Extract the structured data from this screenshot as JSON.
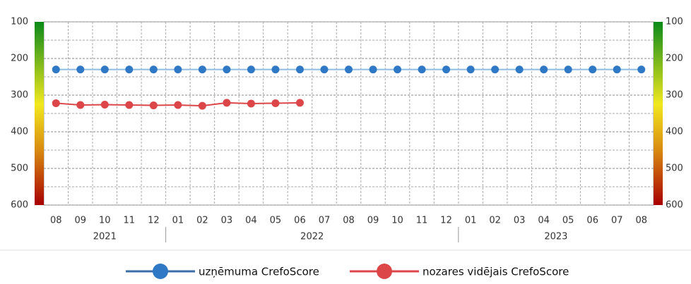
{
  "chart_data": {
    "type": "line",
    "categories": [
      "08",
      "09",
      "10",
      "11",
      "12",
      "01",
      "02",
      "03",
      "04",
      "05",
      "06",
      "07",
      "08",
      "09",
      "10",
      "11",
      "12",
      "01",
      "02",
      "03",
      "04",
      "05",
      "06",
      "07",
      "08"
    ],
    "years": [
      "2021",
      "2022",
      "2023"
    ],
    "series": [
      {
        "name": "uzņēmuma CrefoScore",
        "color": "#2f78c5",
        "line_color": "#8fbbe3",
        "values": [
          230,
          230,
          230,
          230,
          230,
          230,
          230,
          230,
          230,
          230,
          230,
          230,
          230,
          230,
          230,
          230,
          230,
          230,
          230,
          230,
          230,
          230,
          230,
          230,
          230
        ]
      },
      {
        "name": "nozares vidējais CrefoScore",
        "color": "#dc4648",
        "line_color": "#dc4648",
        "values": [
          322,
          327,
          326,
          327,
          328,
          327,
          329,
          321,
          323,
          322,
          321,
          null,
          null,
          null,
          null,
          null,
          null,
          null,
          null,
          null,
          null,
          null,
          null,
          null,
          null
        ]
      }
    ],
    "ylim": [
      100,
      600
    ],
    "yticks": [
      100,
      200,
      300,
      400,
      500,
      600
    ],
    "y_reversed": true,
    "grid": true
  }
}
